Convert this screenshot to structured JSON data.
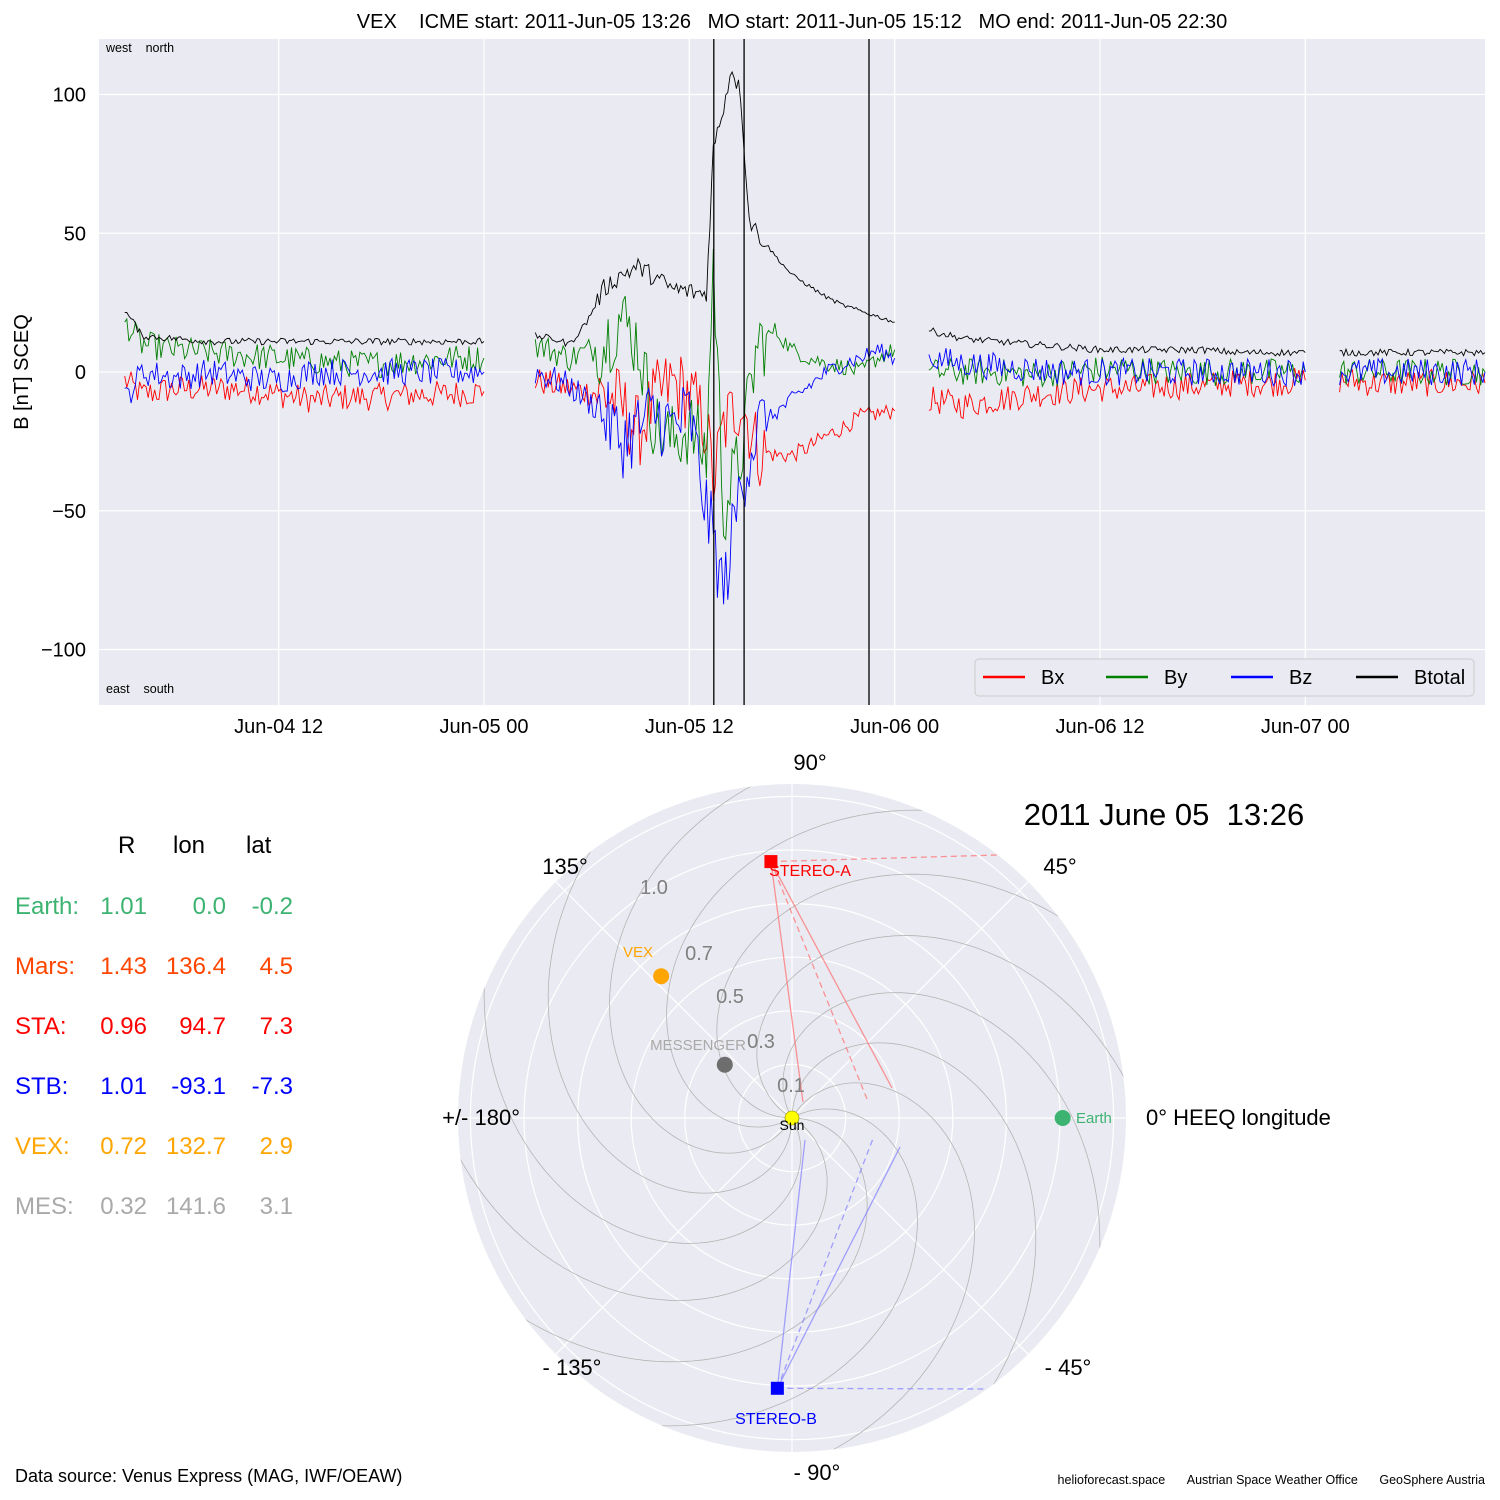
{
  "top_panel": {
    "title": "VEX    ICME start: 2011-Jun-05 13:26   MO start: 2011-Jun-05 15:12   MO end: 2011-Jun-05 22:30",
    "ylabel": "B [nT] SCEQ",
    "corner_top": "west    north",
    "corner_bottom": "east    south"
  },
  "polar_panel": {
    "date_label": "2011 June 05  13:26",
    "angle_labels": [
      "90°",
      "45°",
      "0° HEEQ longitude",
      "- 45°",
      "- 90°",
      "- 135°",
      "+/- 180°",
      "135°"
    ],
    "radial_labels": [
      "0.1",
      "0.3",
      "0.5",
      "0.7",
      "1.0"
    ],
    "bodies": [
      {
        "name": "Sun",
        "r": 0.0,
        "lon": 0.0,
        "color": "#ffff00",
        "marker": "circle"
      },
      {
        "name": "Earth",
        "r": 1.01,
        "lon": 0.0,
        "color": "#3cb371",
        "marker": "circle"
      },
      {
        "name": "STEREO-A",
        "r": 0.96,
        "lon": 94.7,
        "color": "#ff0000",
        "marker": "square"
      },
      {
        "name": "STEREO-B",
        "r": 1.01,
        "lon": -93.1,
        "color": "#0000ff",
        "marker": "square"
      },
      {
        "name": "VEX",
        "r": 0.72,
        "lon": 132.7,
        "color": "#ffa500",
        "marker": "circle"
      },
      {
        "name": "MESSENGER",
        "r": 0.32,
        "lon": 141.6,
        "color": "#6e6e6e",
        "marker": "circle"
      }
    ]
  },
  "position_table": {
    "headers": [
      "R",
      "lon",
      "lat"
    ],
    "rows": [
      {
        "name": "Earth:",
        "R": "1.01",
        "lon": "0.0",
        "lat": "-0.2",
        "color": "#3cb371"
      },
      {
        "name": "Mars:",
        "R": "1.43",
        "lon": "136.4",
        "lat": "4.5",
        "color": "#ff4500"
      },
      {
        "name": "STA:",
        "R": "0.96",
        "lon": "94.7",
        "lat": "7.3",
        "color": "#ff0000"
      },
      {
        "name": "STB:",
        "R": "1.01",
        "lon": "-93.1",
        "lat": "-7.3",
        "color": "#0000ff"
      },
      {
        "name": "VEX:",
        "R": "0.72",
        "lon": "132.7",
        "lat": "2.9",
        "color": "#ffa500"
      },
      {
        "name": "MES:",
        "R": "0.32",
        "lon": "141.6",
        "lat": "3.1",
        "color": "#a9a9a9"
      }
    ]
  },
  "footer": {
    "source": "Data source: Venus Express (MAG, IWF/OEAW)",
    "credits": [
      "helioforecast.space",
      "Austrian Space Weather Office",
      "GeoSphere Austria"
    ]
  },
  "chart_data": [
    {
      "type": "line",
      "title": "VEX    ICME start: 2011-Jun-05 13:26   MO start: 2011-Jun-05 15:12   MO end: 2011-Jun-05 22:30",
      "xlabel": "",
      "ylabel": "B [nT] SCEQ",
      "x_unit": "hours since Jun-04 00",
      "xlim": [
        1.5,
        82.5
      ],
      "ylim": [
        -120,
        120
      ],
      "x_ticks": [
        {
          "x": 12,
          "label": "Jun-04 12"
        },
        {
          "x": 24,
          "label": "Jun-05 00"
        },
        {
          "x": 36,
          "label": "Jun-05 12"
        },
        {
          "x": 48,
          "label": "Jun-06 00"
        },
        {
          "x": 60,
          "label": "Jun-06 12"
        },
        {
          "x": 72,
          "label": "Jun-07 00"
        }
      ],
      "y_ticks": [
        {
          "y": 100,
          "label": "100"
        },
        {
          "y": 50,
          "label": "50"
        },
        {
          "y": 0,
          "label": "0"
        },
        {
          "y": -50,
          "label": "−50"
        },
        {
          "y": -100,
          "label": "−100"
        }
      ],
      "event_lines": [
        {
          "time": "2011-Jun-05 13:26",
          "x": 37.43
        },
        {
          "time": "2011-Jun-05 15:12",
          "x": 39.2
        },
        {
          "time": "2011-Jun-05 22:30",
          "x": 46.5
        }
      ],
      "grid": true,
      "legend_position": "bottom-right",
      "series": [
        {
          "name": "Bx",
          "color": "#ff0000",
          "points": [
            [
              3,
              -3
            ],
            [
              4,
              -8
            ],
            [
              6,
              -6
            ],
            [
              8,
              -6
            ],
            [
              10,
              -6
            ],
            [
              12,
              -8
            ],
            [
              14,
              -10
            ],
            [
              16,
              -9
            ],
            [
              18,
              -9
            ],
            [
              20,
              -8
            ],
            [
              22,
              -8
            ],
            [
              24,
              -7
            ],
            [
              null,
              null
            ],
            [
              27,
              -3
            ],
            [
              29,
              -6
            ],
            [
              31,
              -8
            ],
            [
              32,
              -12
            ],
            [
              33,
              -22
            ],
            [
              34,
              -10
            ],
            [
              35,
              -4
            ],
            [
              36,
              -8
            ],
            [
              37,
              -20
            ],
            [
              37.4,
              -40
            ],
            [
              38,
              -20
            ],
            [
              39,
              -10
            ],
            [
              40,
              -28
            ],
            [
              41,
              -30
            ],
            [
              42,
              -30
            ],
            [
              43,
              -27
            ],
            [
              44,
              -23
            ],
            [
              45,
              -20
            ],
            [
              46,
              -16
            ],
            [
              47,
              -15
            ],
            [
              48,
              -14
            ],
            [
              null,
              null
            ],
            [
              50,
              -10
            ],
            [
              52,
              -12
            ],
            [
              54,
              -10
            ],
            [
              56,
              -8
            ],
            [
              58,
              -7
            ],
            [
              60,
              -6
            ],
            [
              62,
              -6
            ],
            [
              64,
              -5
            ],
            [
              66,
              -5
            ],
            [
              68,
              -4
            ],
            [
              70,
              -4
            ],
            [
              72,
              -3
            ],
            [
              null,
              null
            ],
            [
              74,
              -3
            ],
            [
              76,
              -4
            ],
            [
              78,
              -4
            ],
            [
              80,
              -4
            ],
            [
              82.5,
              -4
            ]
          ]
        },
        {
          "name": "By",
          "color": "#008000",
          "points": [
            [
              3,
              18
            ],
            [
              4,
              10
            ],
            [
              6,
              8
            ],
            [
              8,
              7
            ],
            [
              10,
              6
            ],
            [
              12,
              5
            ],
            [
              14,
              4
            ],
            [
              16,
              3
            ],
            [
              18,
              3
            ],
            [
              20,
              4
            ],
            [
              22,
              5
            ],
            [
              24,
              5
            ],
            [
              null,
              null
            ],
            [
              27,
              10
            ],
            [
              29,
              5
            ],
            [
              31,
              10
            ],
            [
              32,
              20
            ],
            [
              33,
              10
            ],
            [
              34,
              -20
            ],
            [
              35,
              -25
            ],
            [
              36,
              -20
            ],
            [
              37,
              -30
            ],
            [
              37.4,
              40
            ],
            [
              38,
              -50
            ],
            [
              39,
              -30
            ],
            [
              40,
              10
            ],
            [
              41,
              15
            ],
            [
              42,
              8
            ],
            [
              43,
              5
            ],
            [
              44,
              3
            ],
            [
              45,
              2
            ],
            [
              46,
              0
            ],
            [
              47,
              5
            ],
            [
              48,
              8
            ],
            [
              null,
              null
            ],
            [
              50,
              0
            ],
            [
              52,
              0
            ],
            [
              54,
              0
            ],
            [
              56,
              -1
            ],
            [
              58,
              0
            ],
            [
              60,
              1
            ],
            [
              62,
              1
            ],
            [
              64,
              0
            ],
            [
              66,
              0
            ],
            [
              68,
              0
            ],
            [
              70,
              0
            ],
            [
              72,
              0
            ],
            [
              null,
              null
            ],
            [
              74,
              0
            ],
            [
              76,
              0
            ],
            [
              78,
              0
            ],
            [
              80,
              0
            ],
            [
              82.5,
              0
            ]
          ]
        },
        {
          "name": "Bz",
          "color": "#0000ff",
          "points": [
            [
              3,
              -10
            ],
            [
              4,
              0
            ],
            [
              6,
              -2
            ],
            [
              8,
              0
            ],
            [
              10,
              -2
            ],
            [
              12,
              -3
            ],
            [
              14,
              0
            ],
            [
              16,
              0
            ],
            [
              18,
              0
            ],
            [
              20,
              0
            ],
            [
              22,
              0
            ],
            [
              24,
              0
            ],
            [
              null,
              null
            ],
            [
              27,
              0
            ],
            [
              29,
              -5
            ],
            [
              31,
              -15
            ],
            [
              32,
              -25
            ],
            [
              33,
              -20
            ],
            [
              34,
              -15
            ],
            [
              35,
              -20
            ],
            [
              36,
              -15
            ],
            [
              37,
              -50
            ],
            [
              37.4,
              -60
            ],
            [
              38,
              -80
            ],
            [
              39,
              -40
            ],
            [
              40,
              -20
            ],
            [
              41,
              -15
            ],
            [
              42,
              -10
            ],
            [
              43,
              -5
            ],
            [
              44,
              0
            ],
            [
              45,
              3
            ],
            [
              46,
              5
            ],
            [
              47,
              8
            ],
            [
              48,
              5
            ],
            [
              null,
              null
            ],
            [
              50,
              5
            ],
            [
              52,
              3
            ],
            [
              54,
              2
            ],
            [
              56,
              1
            ],
            [
              58,
              0
            ],
            [
              60,
              0
            ],
            [
              62,
              0
            ],
            [
              64,
              0
            ],
            [
              66,
              0
            ],
            [
              68,
              0
            ],
            [
              70,
              0
            ],
            [
              72,
              0
            ],
            [
              null,
              null
            ],
            [
              74,
              0
            ],
            [
              76,
              0
            ],
            [
              78,
              0
            ],
            [
              80,
              0
            ],
            [
              82.5,
              0
            ]
          ]
        },
        {
          "name": "Btotal",
          "color": "#000000",
          "points": [
            [
              3,
              22
            ],
            [
              3.5,
              18
            ],
            [
              4,
              13
            ],
            [
              6,
              12
            ],
            [
              8,
              11
            ],
            [
              10,
              11
            ],
            [
              12,
              11
            ],
            [
              14,
              11
            ],
            [
              16,
              11
            ],
            [
              18,
              11
            ],
            [
              20,
              11
            ],
            [
              22,
              11
            ],
            [
              24,
              11
            ],
            [
              null,
              null
            ],
            [
              27,
              13
            ],
            [
              28,
              12
            ],
            [
              29,
              10
            ],
            [
              30,
              18
            ],
            [
              31,
              30
            ],
            [
              32,
              35
            ],
            [
              33,
              38
            ],
            [
              34,
              34
            ],
            [
              35,
              30
            ],
            [
              36,
              29
            ],
            [
              37,
              28
            ],
            [
              37.2,
              55
            ],
            [
              37.4,
              80
            ],
            [
              38,
              96
            ],
            [
              38.5,
              110
            ],
            [
              39,
              100
            ],
            [
              39.5,
              55
            ],
            [
              40,
              50
            ],
            [
              41,
              42
            ],
            [
              42,
              35
            ],
            [
              43,
              31
            ],
            [
              44,
              27
            ],
            [
              45,
              24
            ],
            [
              46,
              22
            ],
            [
              47,
              20
            ],
            [
              48,
              18
            ],
            [
              null,
              null
            ],
            [
              50,
              15
            ],
            [
              52,
              12
            ],
            [
              54,
              11
            ],
            [
              56,
              10
            ],
            [
              58,
              9
            ],
            [
              60,
              8
            ],
            [
              62,
              8
            ],
            [
              64,
              8
            ],
            [
              66,
              8
            ],
            [
              68,
              7
            ],
            [
              70,
              7
            ],
            [
              72,
              7
            ],
            [
              null,
              null
            ],
            [
              74,
              7
            ],
            [
              76,
              7
            ],
            [
              78,
              7
            ],
            [
              80,
              7
            ],
            [
              82.5,
              7
            ]
          ]
        }
      ]
    }
  ]
}
